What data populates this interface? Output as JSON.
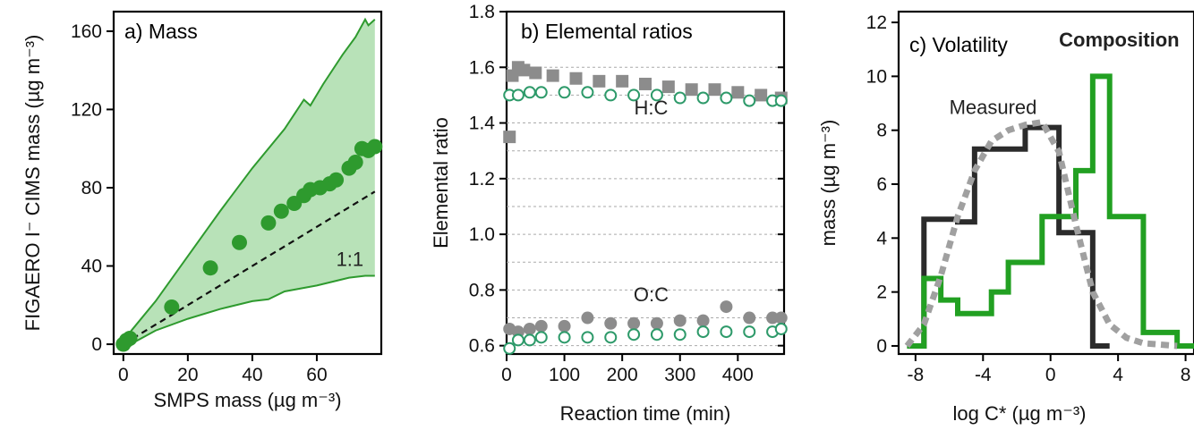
{
  "chart_data": [
    {
      "panel": "a",
      "type": "scatter",
      "title": "a) Mass",
      "xlabel": "SMPS mass (µg m⁻³)",
      "ylabel": "FIGAERO I⁻ CIMS mass (µg m⁻³)",
      "xlim": [
        -3,
        80
      ],
      "ylim": [
        -5,
        170
      ],
      "xticks": [
        "0",
        "20",
        "40",
        "60"
      ],
      "yticks": [
        "0",
        "40",
        "80",
        "120",
        "160"
      ],
      "points": [
        {
          "x": 0,
          "y": 0
        },
        {
          "x": 1,
          "y": 2
        },
        {
          "x": 2,
          "y": 3
        },
        {
          "x": 15,
          "y": 19
        },
        {
          "x": 27,
          "y": 39
        },
        {
          "x": 36,
          "y": 52
        },
        {
          "x": 45,
          "y": 62
        },
        {
          "x": 49,
          "y": 68
        },
        {
          "x": 53,
          "y": 72
        },
        {
          "x": 56,
          "y": 76
        },
        {
          "x": 58,
          "y": 79
        },
        {
          "x": 61,
          "y": 80
        },
        {
          "x": 64,
          "y": 82
        },
        {
          "x": 66,
          "y": 84
        },
        {
          "x": 70,
          "y": 90
        },
        {
          "x": 72,
          "y": 93
        },
        {
          "x": 74,
          "y": 100
        },
        {
          "x": 76,
          "y": 99
        },
        {
          "x": 78,
          "y": 101
        }
      ],
      "band_upper": [
        {
          "x": 0,
          "y": 2
        },
        {
          "x": 10,
          "y": 22
        },
        {
          "x": 20,
          "y": 45
        },
        {
          "x": 30,
          "y": 68
        },
        {
          "x": 40,
          "y": 90
        },
        {
          "x": 50,
          "y": 110
        },
        {
          "x": 56,
          "y": 125
        },
        {
          "x": 58,
          "y": 122
        },
        {
          "x": 62,
          "y": 133
        },
        {
          "x": 68,
          "y": 148
        },
        {
          "x": 72,
          "y": 157
        },
        {
          "x": 75,
          "y": 166
        },
        {
          "x": 76,
          "y": 163
        },
        {
          "x": 78,
          "y": 166
        }
      ],
      "band_lower": [
        {
          "x": 0,
          "y": -2
        },
        {
          "x": 10,
          "y": 7
        },
        {
          "x": 20,
          "y": 13
        },
        {
          "x": 30,
          "y": 18
        },
        {
          "x": 40,
          "y": 22
        },
        {
          "x": 45,
          "y": 23
        },
        {
          "x": 50,
          "y": 27
        },
        {
          "x": 60,
          "y": 30
        },
        {
          "x": 70,
          "y": 34
        },
        {
          "x": 75,
          "y": 35
        },
        {
          "x": 78,
          "y": 35
        }
      ],
      "reference_line": {
        "label": "1:1",
        "slope": 1
      },
      "color": "#2e9a2e",
      "band_color": "#b8e2b8"
    },
    {
      "panel": "b",
      "type": "scatter",
      "title": "b) Elemental ratios",
      "xlabel": "Reaction time (min)",
      "ylabel": "Elemental ratio",
      "xlim": [
        0,
        480
      ],
      "ylim": [
        0.57,
        1.8
      ],
      "xticks": [
        "0",
        "100",
        "200",
        "300",
        "400"
      ],
      "yticks": [
        "0.6",
        "0.8",
        "1.0",
        "1.2",
        "1.4",
        "1.6",
        "1.8"
      ],
      "grid": true,
      "labels": [
        "H:C",
        "O:C"
      ],
      "series": [
        {
          "name": "H:C",
          "marker": "square",
          "color": "#8c8c8c",
          "x": [
            5,
            10,
            20,
            30,
            50,
            80,
            120,
            160,
            200,
            240,
            280,
            320,
            360,
            400,
            440,
            475
          ],
          "y": [
            1.35,
            1.57,
            1.6,
            1.59,
            1.58,
            1.57,
            1.56,
            1.55,
            1.55,
            1.54,
            1.53,
            1.52,
            1.52,
            1.51,
            1.5,
            1.49
          ]
        },
        {
          "name": "H:C",
          "marker": "open-circle",
          "color": "#2e9a6a",
          "x": [
            5,
            20,
            40,
            60,
            100,
            140,
            180,
            220,
            260,
            300,
            340,
            380,
            420,
            460,
            475
          ],
          "y": [
            1.5,
            1.5,
            1.51,
            1.51,
            1.51,
            1.51,
            1.5,
            1.5,
            1.5,
            1.49,
            1.49,
            1.49,
            1.48,
            1.48,
            1.48
          ]
        },
        {
          "name": "O:C",
          "marker": "circle",
          "color": "#8c8c8c",
          "x": [
            5,
            20,
            40,
            60,
            100,
            140,
            180,
            220,
            260,
            300,
            340,
            380,
            420,
            460,
            475
          ],
          "y": [
            0.66,
            0.65,
            0.66,
            0.67,
            0.67,
            0.7,
            0.68,
            0.68,
            0.68,
            0.69,
            0.69,
            0.74,
            0.7,
            0.7,
            0.7
          ]
        },
        {
          "name": "O:C",
          "marker": "open-circle",
          "color": "#2e9a6a",
          "x": [
            5,
            20,
            40,
            60,
            100,
            140,
            180,
            220,
            260,
            300,
            340,
            380,
            420,
            460,
            475
          ],
          "y": [
            0.59,
            0.62,
            0.62,
            0.63,
            0.63,
            0.63,
            0.63,
            0.64,
            0.64,
            0.64,
            0.65,
            0.65,
            0.65,
            0.65,
            0.66
          ]
        }
      ]
    },
    {
      "panel": "c",
      "type": "line",
      "title": "c) Volatility",
      "xlabel": "log C* (µg m⁻³)",
      "ylabel": "mass (µg m⁻³)",
      "xlim": [
        -9,
        8.5
      ],
      "ylim": [
        -0.3,
        12.4
      ],
      "xticks": [
        "-8",
        "-4",
        "0",
        "4",
        "8"
      ],
      "yticks": [
        "0",
        "2",
        "4",
        "6",
        "8",
        "10",
        "12"
      ],
      "series": [
        {
          "name": "Measured",
          "style": "step",
          "color": "#2b2b2b",
          "x": [
            -8,
            -7,
            -6,
            -5,
            -4,
            -3,
            -2,
            -1,
            0,
            1,
            2,
            3
          ],
          "y": [
            0,
            4.7,
            4.7,
            4.6,
            7.3,
            7.3,
            7.3,
            8.1,
            8.1,
            4.2,
            4.2,
            0
          ]
        },
        {
          "name": "Composition",
          "style": "step",
          "color": "#22a022",
          "x": [
            -8,
            -7,
            -6,
            -5,
            -4,
            -3,
            -2,
            -1,
            0,
            1,
            2,
            3,
            4,
            5,
            6,
            7,
            8
          ],
          "y": [
            0,
            2.5,
            1.7,
            1.2,
            1.2,
            2.0,
            3.1,
            3.1,
            4.8,
            4.8,
            6.5,
            10.0,
            4.8,
            4.8,
            0.5,
            0.5,
            0
          ]
        },
        {
          "name": "",
          "style": "dashed",
          "color": "#a0a0a0",
          "x": [
            -8.5,
            -7.5,
            -6.5,
            -5.5,
            -4.5,
            -3.5,
            -2.5,
            -1.5,
            -0.5,
            0.5,
            1.5,
            2.5,
            3.5,
            4.5,
            5.5,
            6.5,
            7.5
          ],
          "y": [
            0,
            0.8,
            2.6,
            4.8,
            6.5,
            7.6,
            8.0,
            8.2,
            8.3,
            7.2,
            4.5,
            2.0,
            0.8,
            0.3,
            0.1,
            0.05,
            0
          ]
        }
      ]
    }
  ]
}
